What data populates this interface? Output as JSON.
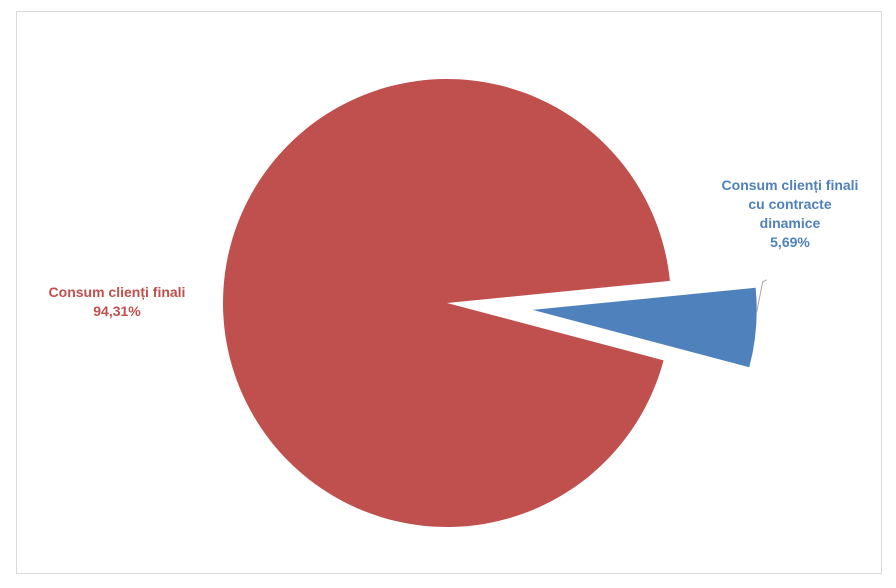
{
  "chart_data": {
    "type": "pie",
    "series": [
      {
        "values": [
          5.69,
          94.31
        ]
      }
    ],
    "categories": [
      "Consum clienți finali cu contracte dinamice",
      "Consum clienți finali"
    ],
    "colors": [
      "#4f81bd",
      "#c0504d"
    ],
    "labels": {
      "small_line1": "Consum clienți finali",
      "small_line2": "cu contracte",
      "small_line3": "dinamice",
      "small_value": "5,69%",
      "large_line1": "Consum clienți finali",
      "large_value": "94,31%"
    },
    "exploded_slice": "Consum clienți finali cu contracte dinamice",
    "legend": "none"
  }
}
